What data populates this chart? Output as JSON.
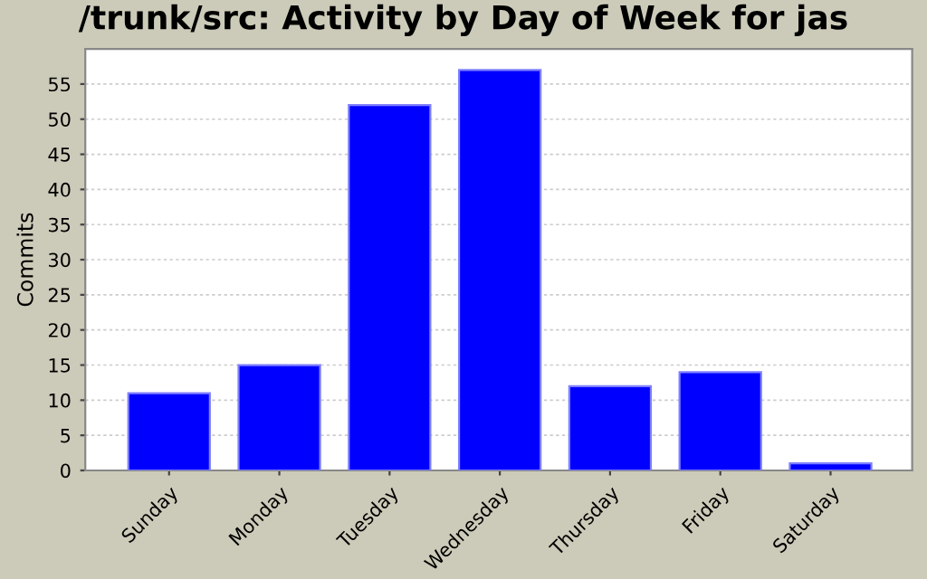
{
  "chart_data": {
    "type": "bar",
    "title": "/trunk/src: Activity by Day of Week for jas",
    "ylabel": "Commits",
    "categories": [
      "Sunday",
      "Monday",
      "Tuesday",
      "Wednesday",
      "Thursday",
      "Friday",
      "Saturday"
    ],
    "values": [
      11,
      15,
      52,
      57,
      12,
      14,
      1
    ],
    "color": "#0000ff",
    "ylim": [
      0,
      60
    ],
    "yticks": [
      0,
      5,
      10,
      15,
      20,
      25,
      30,
      35,
      40,
      45,
      50,
      55
    ],
    "grid": "y",
    "legend": false
  }
}
